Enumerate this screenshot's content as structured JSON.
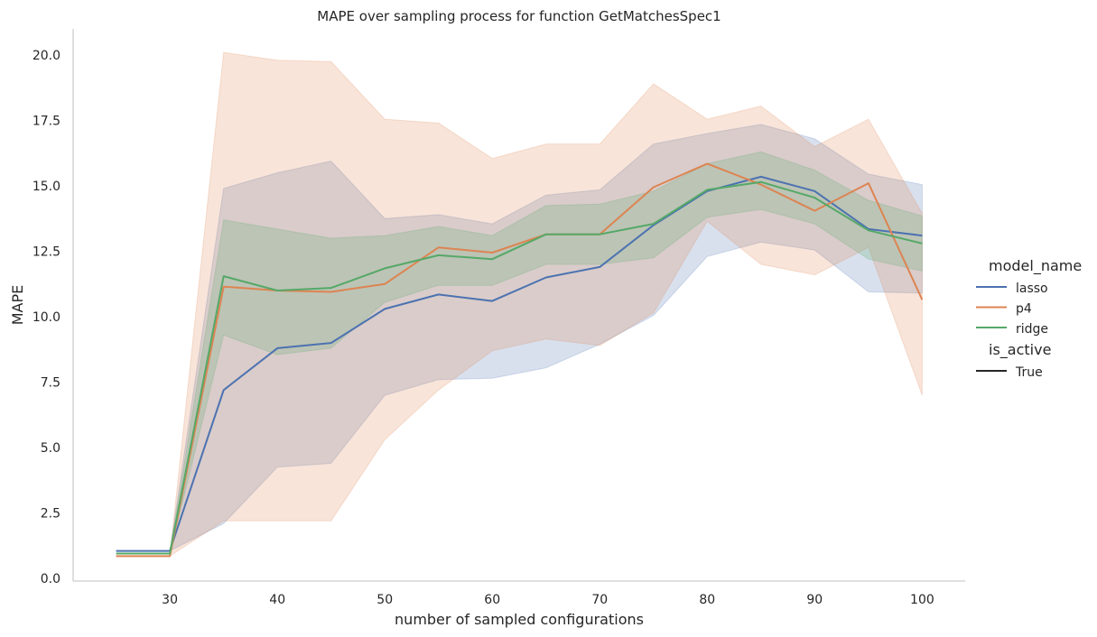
{
  "chart_data": {
    "type": "line",
    "title": "MAPE over sampling process for function GetMatchesSpec1",
    "xlabel": "number of sampled configurations",
    "ylabel": "MAPE",
    "xlim": [
      21,
      104
    ],
    "ylim": [
      -0.1,
      21
    ],
    "xticks": [
      30,
      40,
      50,
      60,
      70,
      80,
      90,
      100
    ],
    "xtick_labels": [
      "30",
      "40",
      "50",
      "60",
      "70",
      "80",
      "90",
      "100"
    ],
    "yticks": [
      0,
      2.5,
      5,
      7.5,
      10,
      12.5,
      15,
      17.5,
      20
    ],
    "ytick_labels": [
      "0.0",
      "2.5",
      "5.0",
      "7.5",
      "10.0",
      "12.5",
      "15.0",
      "17.5",
      "20.0"
    ],
    "grid": false,
    "legend_placement": "right",
    "legend": {
      "hue_title": "model_name",
      "style_title": "is_active",
      "style_entry": "True",
      "style_color": "#262626"
    },
    "x": [
      25,
      30,
      35,
      40,
      45,
      50,
      55,
      60,
      65,
      70,
      75,
      80,
      85,
      90,
      95,
      100
    ],
    "series": [
      {
        "name": "lasso",
        "color": "#4c72b0",
        "values": [
          1.05,
          1.05,
          7.2,
          8.8,
          9.0,
          10.3,
          10.85,
          10.6,
          11.5,
          11.9,
          13.5,
          14.8,
          15.35,
          14.8,
          13.35,
          13.1
        ],
        "lower": [
          1.05,
          1.05,
          2.1,
          4.25,
          4.4,
          7.0,
          7.6,
          7.65,
          8.05,
          8.95,
          10.05,
          12.3,
          12.85,
          12.55,
          10.95,
          10.9
        ],
        "upper": [
          1.05,
          1.05,
          14.9,
          15.5,
          15.95,
          13.75,
          13.9,
          13.55,
          14.65,
          14.85,
          16.6,
          17.0,
          17.35,
          16.8,
          15.45,
          15.05
        ]
      },
      {
        "name": "p4",
        "color": "#dd8452",
        "values": [
          0.85,
          0.85,
          11.15,
          11.0,
          10.95,
          11.25,
          12.65,
          12.45,
          13.15,
          13.15,
          14.95,
          15.85,
          15.05,
          14.05,
          15.1,
          10.65
        ],
        "lower": [
          0.85,
          0.85,
          2.2,
          2.2,
          2.2,
          5.3,
          7.2,
          8.7,
          9.15,
          8.9,
          10.15,
          13.65,
          12.0,
          11.6,
          12.65,
          7.0
        ],
        "upper": [
          0.85,
          0.85,
          20.1,
          19.8,
          19.75,
          17.55,
          17.4,
          16.05,
          16.6,
          16.6,
          18.9,
          17.55,
          18.05,
          16.5,
          17.55,
          13.95
        ]
      },
      {
        "name": "ridge",
        "color": "#55a868",
        "values": [
          0.95,
          0.95,
          11.55,
          11.0,
          11.1,
          11.85,
          12.35,
          12.2,
          13.15,
          13.15,
          13.55,
          14.85,
          15.15,
          14.55,
          13.3,
          12.8
        ],
        "lower": [
          0.95,
          0.95,
          9.3,
          8.55,
          8.8,
          10.55,
          11.2,
          11.2,
          12.0,
          12.0,
          12.25,
          13.8,
          14.1,
          13.55,
          12.2,
          11.75
        ],
        "upper": [
          0.95,
          0.95,
          13.7,
          13.35,
          13.0,
          13.1,
          13.45,
          13.1,
          14.25,
          14.3,
          14.8,
          15.85,
          16.3,
          15.6,
          14.45,
          13.85
        ]
      }
    ]
  }
}
